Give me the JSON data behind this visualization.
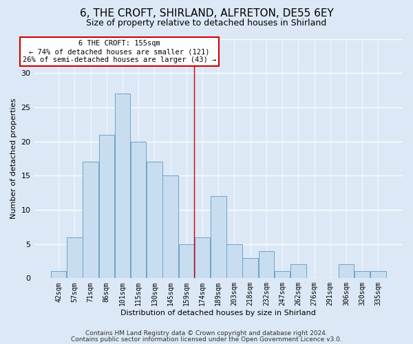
{
  "title": "6, THE CROFT, SHIRLAND, ALFRETON, DE55 6EY",
  "subtitle": "Size of property relative to detached houses in Shirland",
  "xlabel": "Distribution of detached houses by size in Shirland",
  "ylabel": "Number of detached properties",
  "bar_labels": [
    "42sqm",
    "57sqm",
    "71sqm",
    "86sqm",
    "101sqm",
    "115sqm",
    "130sqm",
    "145sqm",
    "159sqm",
    "174sqm",
    "189sqm",
    "203sqm",
    "218sqm",
    "232sqm",
    "247sqm",
    "262sqm",
    "276sqm",
    "291sqm",
    "306sqm",
    "320sqm",
    "335sqm"
  ],
  "bar_values": [
    1,
    6,
    17,
    21,
    27,
    20,
    17,
    15,
    5,
    6,
    12,
    5,
    3,
    4,
    1,
    2,
    0,
    0,
    2,
    1,
    1
  ],
  "bar_color": "#c9ddf0",
  "bar_edgecolor": "#6ba3cc",
  "vline_x": 8.5,
  "vline_color": "#cc0000",
  "annotation_title": "6 THE CROFT: 155sqm",
  "annotation_line1": "← 74% of detached houses are smaller (121)",
  "annotation_line2": "26% of semi-detached houses are larger (43) →",
  "annotation_box_edgecolor": "#cc0000",
  "ylim": [
    0,
    35
  ],
  "yticks": [
    0,
    5,
    10,
    15,
    20,
    25,
    30,
    35
  ],
  "footer1": "Contains HM Land Registry data © Crown copyright and database right 2024.",
  "footer2": "Contains public sector information licensed under the Open Government Licence v3.0.",
  "background_color": "#dce8f5",
  "plot_background_color": "#dce8f5",
  "grid_color": "#ffffff",
  "title_fontsize": 11,
  "subtitle_fontsize": 9,
  "footer_fontsize": 6.5
}
